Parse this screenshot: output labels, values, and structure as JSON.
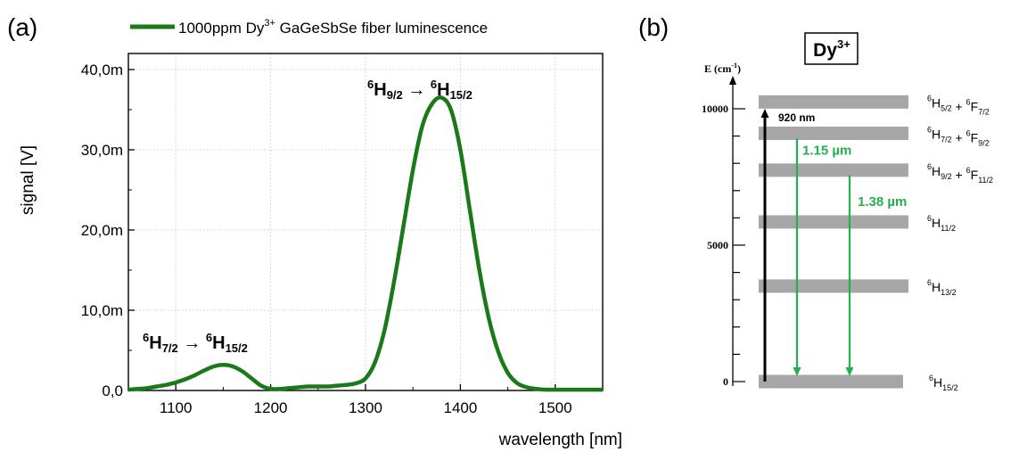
{
  "panels": {
    "a_label": "(a)",
    "b_label": "(b)"
  },
  "chart_data": {
    "type": "line",
    "title": "",
    "xlabel": "wavelength [nm]",
    "ylabel": "signal [V]",
    "xlim": [
      1050,
      1550
    ],
    "ylim": [
      0,
      0.042
    ],
    "grid": true,
    "legend_placement": "top",
    "x_ticks": [
      1100,
      1200,
      1300,
      1400,
      1500
    ],
    "x_tick_labels": [
      "1100",
      "1200",
      "1300",
      "1400",
      "1500"
    ],
    "y_ticks": [
      0,
      0.01,
      0.02,
      0.03,
      0.04
    ],
    "y_tick_labels": [
      "0,0",
      "10,0m",
      "20,0m",
      "30,0m",
      "40,0m"
    ],
    "series": [
      {
        "name": "1000ppm Dy³⁺ GaGeSbSe fiber luminescence",
        "color": "#1a7a1a",
        "x": [
          1050,
          1060,
          1070,
          1080,
          1090,
          1100,
          1110,
          1120,
          1130,
          1140,
          1150,
          1160,
          1170,
          1180,
          1190,
          1200,
          1210,
          1220,
          1230,
          1240,
          1250,
          1260,
          1270,
          1280,
          1290,
          1300,
          1310,
          1320,
          1330,
          1340,
          1350,
          1360,
          1370,
          1380,
          1390,
          1400,
          1410,
          1420,
          1430,
          1440,
          1450,
          1460,
          1470,
          1480,
          1490,
          1500,
          1510,
          1520,
          1530,
          1540,
          1550
        ],
        "y": [
          0.0001,
          0.0002,
          0.0003,
          0.0005,
          0.0007,
          0.001,
          0.0014,
          0.0019,
          0.0025,
          0.003,
          0.0032,
          0.003,
          0.0024,
          0.0015,
          0.0006,
          0.0002,
          0.0002,
          0.0003,
          0.0004,
          0.0005,
          0.0005,
          0.0005,
          0.0006,
          0.0007,
          0.0009,
          0.0015,
          0.0035,
          0.0075,
          0.0135,
          0.0205,
          0.0275,
          0.033,
          0.0357,
          0.0365,
          0.035,
          0.03,
          0.0225,
          0.015,
          0.009,
          0.0048,
          0.0022,
          0.0009,
          0.0004,
          0.0002,
          0.0001,
          0.0001,
          0.0001,
          0.0001,
          0.0001,
          0.0001,
          0.0001
        ]
      }
    ],
    "annotations": [
      {
        "upper": "6",
        "main": "H",
        "sub": "9/2",
        "arrow": " → ",
        "upper2": "6",
        "main2": "H",
        "sub2": "15/2"
      },
      {
        "upper": "6",
        "main": "H",
        "sub": "7/2",
        "arrow": " → ",
        "upper2": "6",
        "main2": "H",
        "sub2": "15/2"
      }
    ]
  },
  "energy_diagram": {
    "ion_label": "Dy",
    "ion_charge": "3+",
    "axis_label": "E (cm",
    "axis_label_sup": "-1",
    "axis_label_end": ")",
    "axis_ticks": [
      {
        "value": 0,
        "label": "0"
      },
      {
        "value": 5000,
        "label": "5000"
      },
      {
        "value": 10000,
        "label": "10000"
      }
    ],
    "levels": [
      {
        "energy": 0,
        "parts": [
          [
            "6",
            "H",
            "15/2"
          ]
        ]
      },
      {
        "energy": 3500,
        "parts": [
          [
            "6",
            "H",
            "13/2"
          ]
        ]
      },
      {
        "energy": 5850,
        "parts": [
          [
            "6",
            "H",
            "11/2"
          ]
        ]
      },
      {
        "energy": 7750,
        "parts": [
          [
            "6",
            "H",
            "9/2"
          ],
          [
            "6",
            "F",
            "11/2"
          ]
        ]
      },
      {
        "energy": 9100,
        "parts": [
          [
            "6",
            "H",
            "7/2"
          ],
          [
            "6",
            "F",
            "9/2"
          ]
        ]
      },
      {
        "energy": 10250,
        "parts": [
          [
            "6",
            "H",
            "5/2"
          ],
          [
            "6",
            "F",
            "7/2"
          ]
        ]
      }
    ],
    "plus": "+",
    "pump": {
      "label": "920 nm",
      "from": 0,
      "to": 10000,
      "color": "#000000"
    },
    "emissions": [
      {
        "label": "1.15 µm",
        "from": 9100,
        "to": 0,
        "color": "#22b14c"
      },
      {
        "label": "1.38 µm",
        "from": 7750,
        "to": 0,
        "color": "#22b14c"
      }
    ]
  }
}
